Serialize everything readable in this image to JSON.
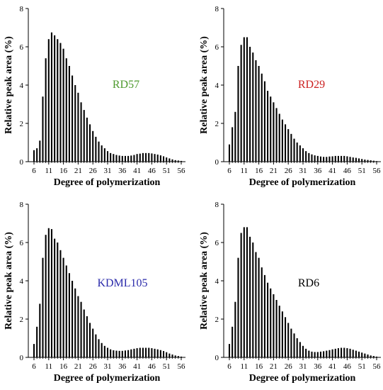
{
  "chart_data": [
    {
      "type": "bar",
      "panel_label": "RD57",
      "label_color": "#4e9a2e",
      "xlabel": "Degree of polymerization",
      "ylabel": "Relative peak area (%)",
      "ylim": [
        0,
        8
      ],
      "yticks": [
        "0",
        "2",
        "4",
        "6",
        "8"
      ],
      "xticks": [
        "6",
        "11",
        "16",
        "21",
        "26",
        "31",
        "36",
        "41",
        "46",
        "51",
        "56"
      ],
      "x": [
        6,
        7,
        8,
        9,
        10,
        11,
        12,
        13,
        14,
        15,
        16,
        17,
        18,
        19,
        20,
        21,
        22,
        23,
        24,
        25,
        26,
        27,
        28,
        29,
        30,
        31,
        32,
        33,
        34,
        35,
        36,
        37,
        38,
        39,
        40,
        41,
        42,
        43,
        44,
        45,
        46,
        47,
        48,
        49,
        50,
        51,
        52,
        53,
        54,
        55,
        56
      ],
      "values": [
        0.6,
        0.7,
        1.1,
        3.4,
        5.4,
        6.4,
        6.75,
        6.6,
        6.4,
        6.2,
        5.9,
        5.4,
        5.0,
        4.5,
        4.0,
        3.6,
        3.1,
        2.7,
        2.3,
        1.95,
        1.6,
        1.3,
        1.05,
        0.85,
        0.7,
        0.55,
        0.45,
        0.4,
        0.35,
        0.32,
        0.3,
        0.3,
        0.3,
        0.32,
        0.35,
        0.4,
        0.42,
        0.45,
        0.45,
        0.45,
        0.43,
        0.4,
        0.37,
        0.33,
        0.28,
        0.22,
        0.17,
        0.12,
        0.08,
        0.06,
        0.04
      ]
    },
    {
      "type": "bar",
      "panel_label": "RD29",
      "label_color": "#cc2222",
      "xlabel": "Degree of polymerization",
      "ylabel": "Relative peak area (%)",
      "ylim": [
        0,
        8
      ],
      "yticks": [
        "0",
        "2",
        "4",
        "6",
        "8"
      ],
      "xticks": [
        "6",
        "11",
        "16",
        "21",
        "26",
        "31",
        "36",
        "41",
        "46",
        "51",
        "56"
      ],
      "x": [
        6,
        7,
        8,
        9,
        10,
        11,
        12,
        13,
        14,
        15,
        16,
        17,
        18,
        19,
        20,
        21,
        22,
        23,
        24,
        25,
        26,
        27,
        28,
        29,
        30,
        31,
        32,
        33,
        34,
        35,
        36,
        37,
        38,
        39,
        40,
        41,
        42,
        43,
        44,
        45,
        46,
        47,
        48,
        49,
        50,
        51,
        52,
        53,
        54,
        55,
        56
      ],
      "values": [
        0.9,
        1.8,
        2.6,
        5.0,
        6.1,
        6.5,
        6.5,
        6.0,
        5.7,
        5.3,
        5.0,
        4.6,
        4.2,
        3.7,
        3.4,
        3.1,
        2.8,
        2.5,
        2.2,
        1.95,
        1.7,
        1.45,
        1.2,
        1.0,
        0.85,
        0.7,
        0.55,
        0.45,
        0.38,
        0.33,
        0.3,
        0.27,
        0.25,
        0.25,
        0.27,
        0.28,
        0.3,
        0.3,
        0.3,
        0.3,
        0.28,
        0.25,
        0.22,
        0.2,
        0.17,
        0.14,
        0.11,
        0.09,
        0.07,
        0.05,
        0.03
      ]
    },
    {
      "type": "bar",
      "panel_label": "KDML105",
      "label_color": "#2a2aaa",
      "xlabel": "Degree of polymerization",
      "ylabel": "Relative peak area (%)",
      "ylim": [
        0,
        8
      ],
      "yticks": [
        "0",
        "2",
        "4",
        "6",
        "8"
      ],
      "xticks": [
        "6",
        "11",
        "16",
        "21",
        "26",
        "31",
        "36",
        "41",
        "46",
        "51",
        "56"
      ],
      "x": [
        6,
        7,
        8,
        9,
        10,
        11,
        12,
        13,
        14,
        15,
        16,
        17,
        18,
        19,
        20,
        21,
        22,
        23,
        24,
        25,
        26,
        27,
        28,
        29,
        30,
        31,
        32,
        33,
        34,
        35,
        36,
        37,
        38,
        39,
        40,
        41,
        42,
        43,
        44,
        45,
        46,
        47,
        48,
        49,
        50,
        51,
        52,
        53,
        54,
        55,
        56
      ],
      "values": [
        0.7,
        1.6,
        2.8,
        5.2,
        6.4,
        6.75,
        6.7,
        6.2,
        6.0,
        5.6,
        5.2,
        4.8,
        4.4,
        4.0,
        3.6,
        3.2,
        2.9,
        2.5,
        2.15,
        1.8,
        1.5,
        1.2,
        0.95,
        0.75,
        0.6,
        0.5,
        0.42,
        0.37,
        0.35,
        0.34,
        0.34,
        0.36,
        0.38,
        0.42,
        0.45,
        0.48,
        0.5,
        0.5,
        0.5,
        0.5,
        0.48,
        0.45,
        0.42,
        0.38,
        0.33,
        0.27,
        0.2,
        0.15,
        0.1,
        0.07,
        0.04
      ]
    },
    {
      "type": "bar",
      "panel_label": "RD6",
      "label_color": "#000000",
      "xlabel": "Degree of polymerization",
      "ylabel": "Relative peak area (%)",
      "ylim": [
        0,
        8
      ],
      "yticks": [
        "0",
        "2",
        "4",
        "6",
        "8"
      ],
      "xticks": [
        "6",
        "11",
        "16",
        "21",
        "26",
        "31",
        "36",
        "41",
        "46",
        "51",
        "56"
      ],
      "x": [
        6,
        7,
        8,
        9,
        10,
        11,
        12,
        13,
        14,
        15,
        16,
        17,
        18,
        19,
        20,
        21,
        22,
        23,
        24,
        25,
        26,
        27,
        28,
        29,
        30,
        31,
        32,
        33,
        34,
        35,
        36,
        37,
        38,
        39,
        40,
        41,
        42,
        43,
        44,
        45,
        46,
        47,
        48,
        49,
        50,
        51,
        52,
        53,
        54,
        55,
        56
      ],
      "values": [
        0.7,
        1.6,
        2.9,
        5.2,
        6.5,
        6.8,
        6.8,
        6.3,
        6.0,
        5.5,
        5.2,
        4.7,
        4.3,
        3.9,
        3.6,
        3.3,
        3.0,
        2.7,
        2.4,
        2.1,
        1.8,
        1.5,
        1.25,
        1.0,
        0.8,
        0.6,
        0.45,
        0.35,
        0.3,
        0.28,
        0.28,
        0.3,
        0.32,
        0.35,
        0.38,
        0.42,
        0.45,
        0.48,
        0.5,
        0.5,
        0.48,
        0.45,
        0.4,
        0.35,
        0.3,
        0.25,
        0.2,
        0.15,
        0.1,
        0.07,
        0.04
      ]
    }
  ]
}
